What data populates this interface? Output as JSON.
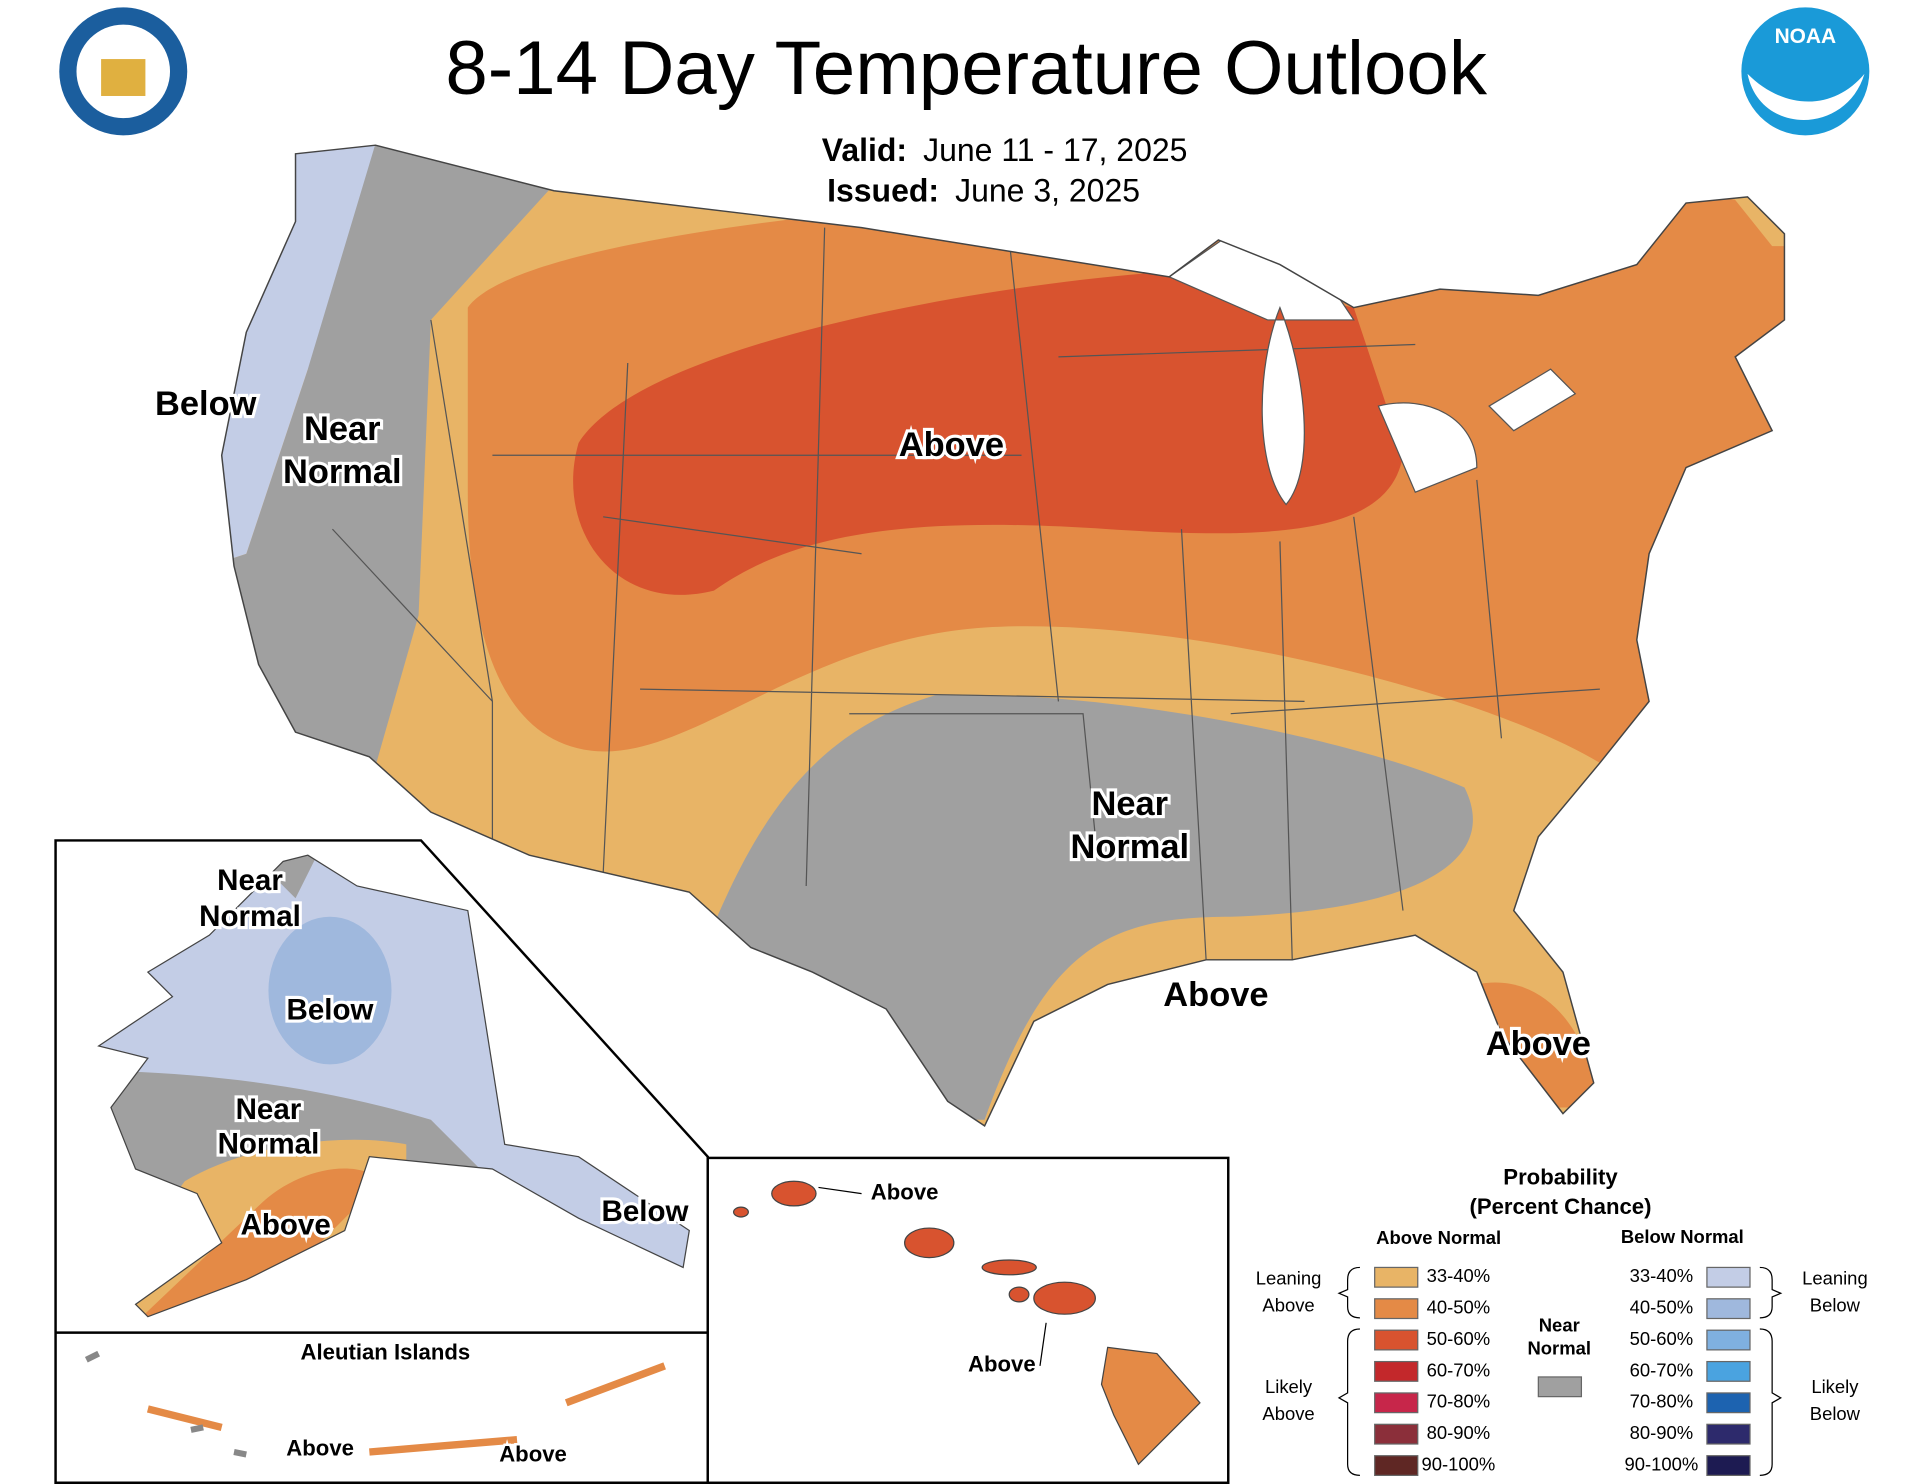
{
  "header": {
    "title": "8-14 Day Temperature Outlook",
    "valid_label": "Valid:",
    "valid": "June 11 - 17, 2025",
    "issued_label": "Issued:",
    "issued": "June 3, 2025"
  },
  "logos": {
    "noaa": "NOAA"
  },
  "map_labels": [
    "Below",
    "Near",
    "Normal",
    "Above",
    "Near",
    "Normal",
    "Above",
    "Above"
  ],
  "alaska_labels": [
    "Near",
    "Normal",
    "Below",
    "Near",
    "Normal",
    "Above",
    "Below"
  ],
  "aleutian": {
    "title": "Aleutian Islands",
    "labels": [
      "Above",
      "Above"
    ]
  },
  "hawaii_labels": [
    "Above",
    "Above"
  ],
  "legend": {
    "title": "Probability",
    "subtitle": "(Percent Chance)",
    "above_heading": "Above Normal",
    "below_heading": "Below Normal",
    "near_normal": [
      "Near",
      "Normal"
    ],
    "near_color": "#a0a0a0",
    "leaning_above": [
      "Leaning",
      "Above"
    ],
    "likely_above": [
      "Likely",
      "Above"
    ],
    "leaning_below": [
      "Leaning",
      "Below"
    ],
    "likely_below": [
      "Likely",
      "Below"
    ],
    "above_bins": [
      {
        "label": "33-40%",
        "color": "#e8b466"
      },
      {
        "label": "40-50%",
        "color": "#e48a46"
      },
      {
        "label": "50-60%",
        "color": "#d8532f"
      },
      {
        "label": "60-70%",
        "color": "#c3282b"
      },
      {
        "label": "70-80%",
        "color": "#c7264a"
      },
      {
        "label": "80-90%",
        "color": "#8b2f3a"
      },
      {
        "label": "90-100%",
        "color": "#5f2724"
      }
    ],
    "below_bins": [
      {
        "label": "33-40%",
        "color": "#c3cde6"
      },
      {
        "label": "40-50%",
        "color": "#9fb8dd"
      },
      {
        "label": "50-60%",
        "color": "#7fb0e0"
      },
      {
        "label": "60-70%",
        "color": "#4aa3e0"
      },
      {
        "label": "70-80%",
        "color": "#1d63b0"
      },
      {
        "label": "80-90%",
        "color": "#2d2a6c"
      },
      {
        "label": "90-100%",
        "color": "#1d1b52"
      }
    ]
  }
}
